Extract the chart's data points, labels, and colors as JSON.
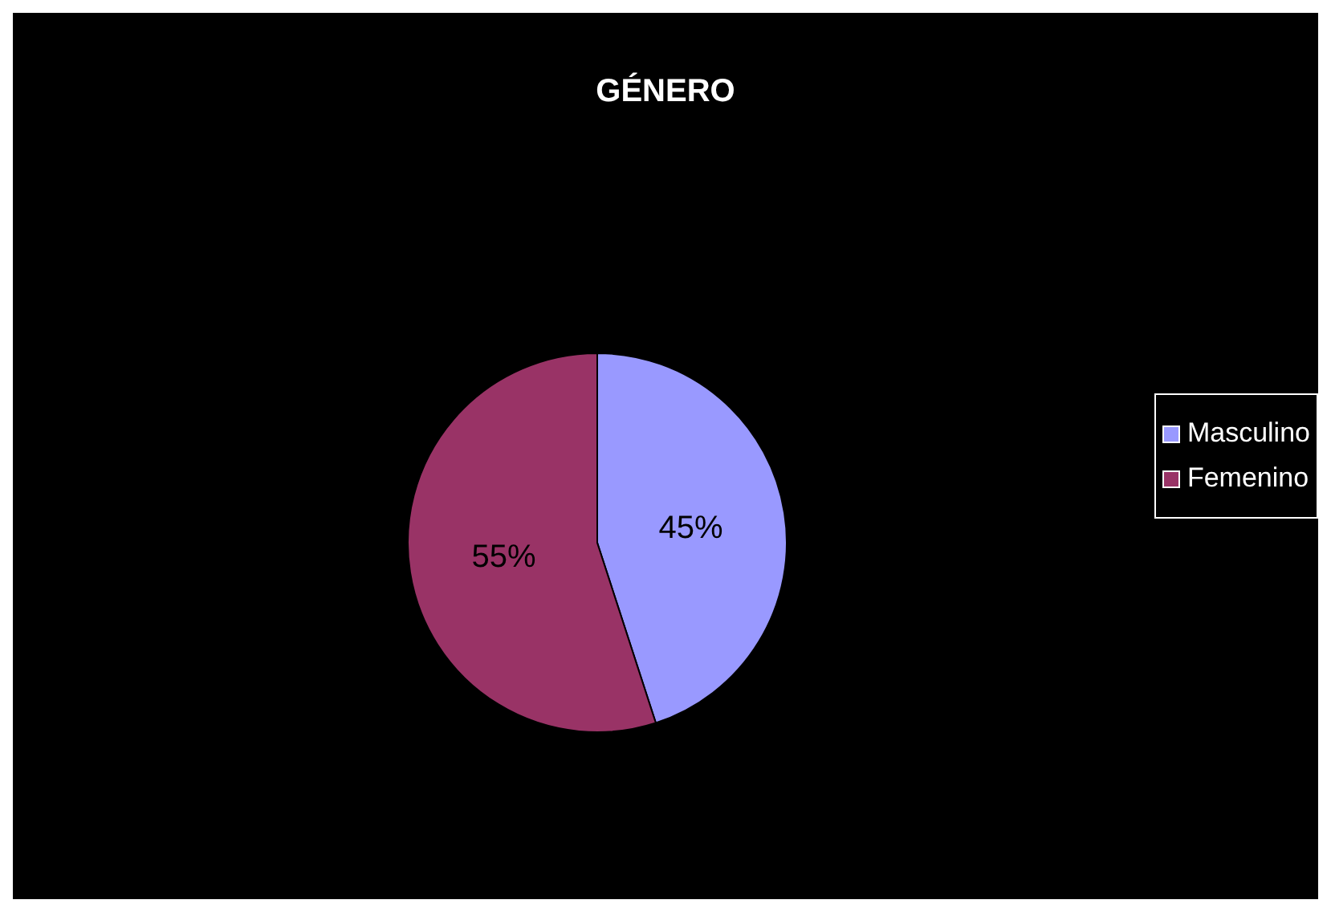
{
  "chart_data": {
    "type": "pie",
    "title": "GÉNERO",
    "categories": [
      "Masculino",
      "Femenino"
    ],
    "values": [
      45,
      55
    ],
    "colors": [
      "#9999ff",
      "#993366"
    ],
    "value_labels": [
      "45%",
      "55%"
    ],
    "legend": "right"
  }
}
